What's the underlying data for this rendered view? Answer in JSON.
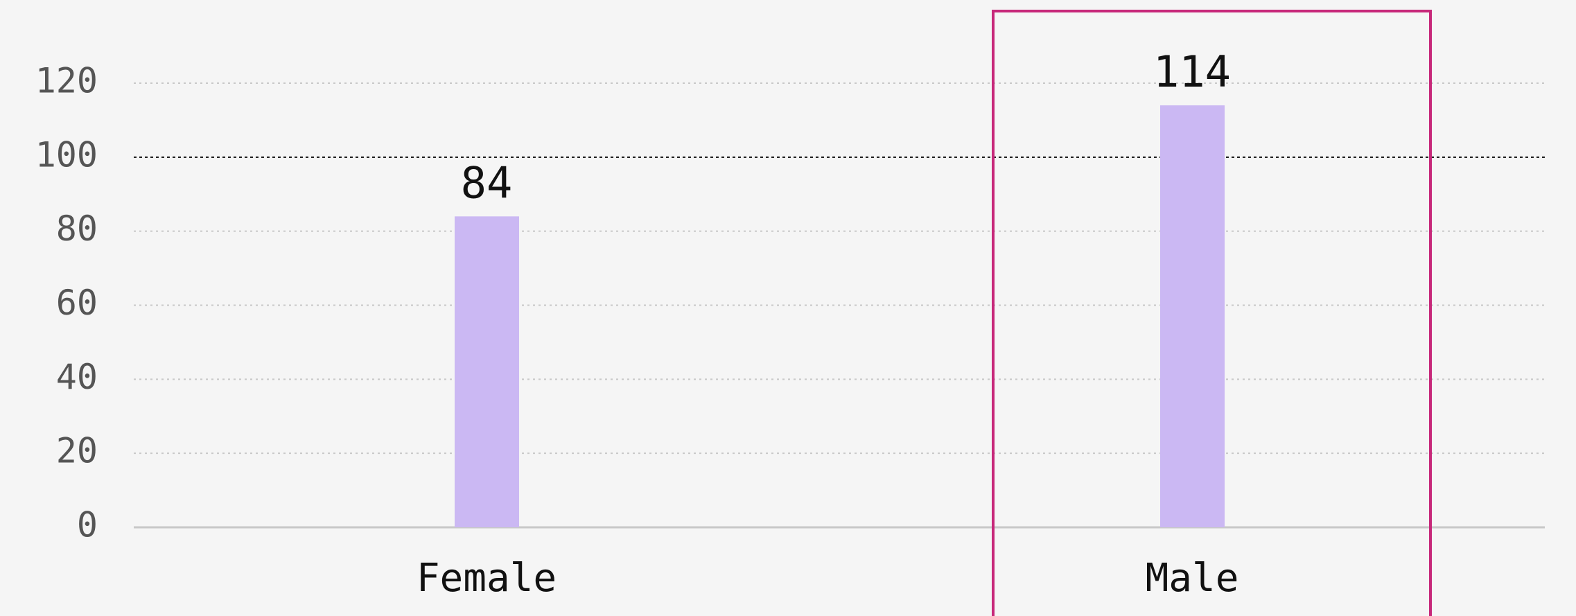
{
  "chart_data": {
    "type": "bar",
    "categories": [
      "Female",
      "Male"
    ],
    "values": [
      84,
      114
    ],
    "color": "#cbb8f3",
    "ylim": [
      0,
      120
    ],
    "yticks": [
      0,
      20,
      40,
      60,
      80,
      100,
      120
    ],
    "grid": true,
    "reference_line": 100,
    "highlight": "Male",
    "highlight_color": "#c7287a"
  }
}
